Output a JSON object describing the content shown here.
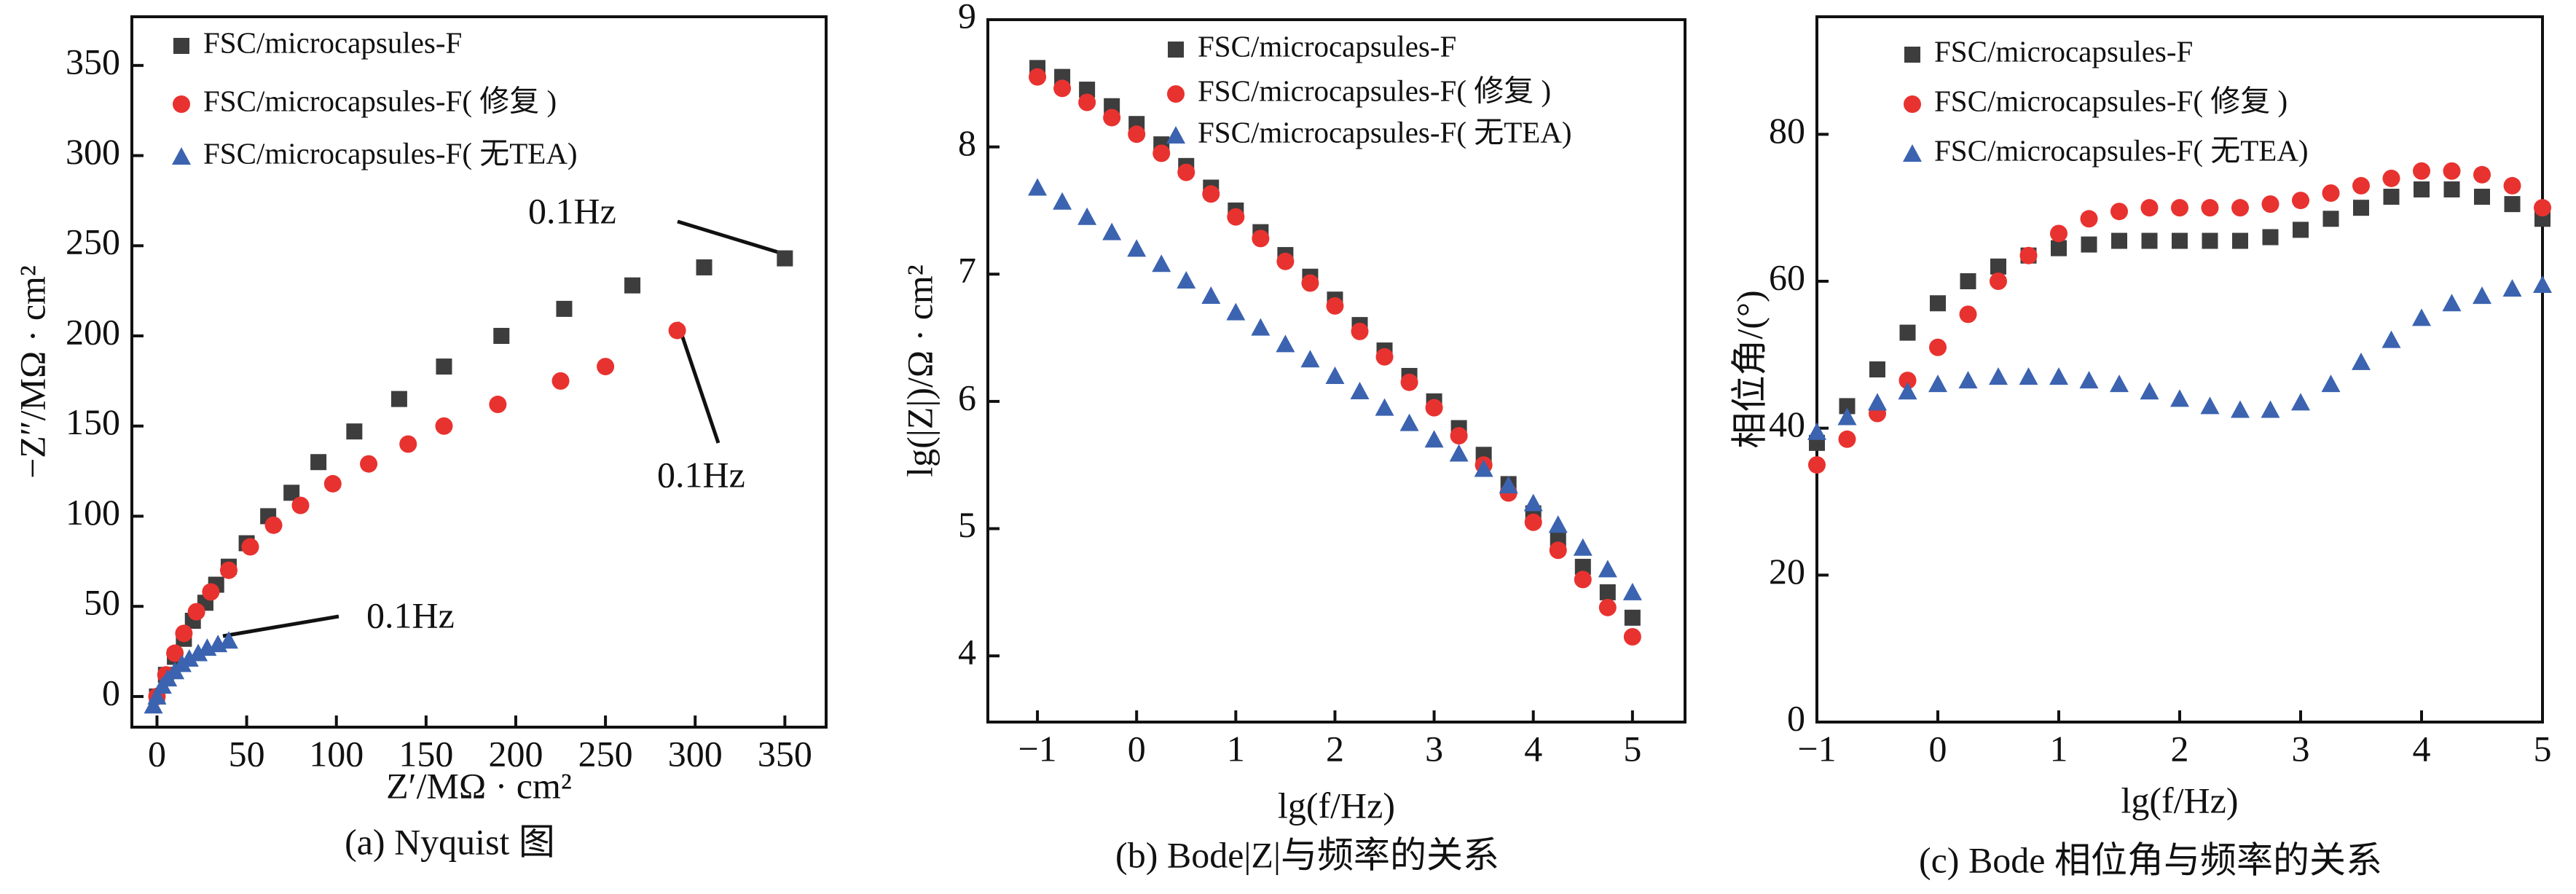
{
  "chart_data": [
    {
      "type": "scatter",
      "caption": "(a) Nyquist 图",
      "xlabel": "Z′/MΩ · cm²",
      "ylabel": "−Z″/MΩ · cm²",
      "xlim": [
        -14,
        373
      ],
      "ylim": [
        -17,
        377
      ],
      "xticks": [
        0,
        50,
        100,
        150,
        200,
        250,
        300,
        350
      ],
      "yticks": [
        0,
        50,
        100,
        150,
        200,
        250,
        300,
        350
      ],
      "annotations": [
        "0.1Hz",
        "0.1Hz",
        "0.1Hz"
      ],
      "series": [
        {
          "name": "FSC/microcapsules-F",
          "color": "#3d3d3d",
          "marker": "square",
          "x": [
            0,
            5,
            10,
            15,
            20,
            27,
            33,
            40,
            50,
            62,
            75,
            90,
            110,
            135,
            160,
            192,
            227,
            265,
            305,
            350
          ],
          "values": [
            0,
            12,
            22,
            32,
            42,
            52,
            62,
            72,
            85,
            100,
            113,
            130,
            147,
            165,
            183,
            200,
            215,
            228,
            238,
            243
          ]
        },
        {
          "name": "FSC/microcapsules-F( 修复 )",
          "color": "#e8322f",
          "marker": "circle",
          "x": [
            0,
            5,
            10,
            15,
            22,
            30,
            40,
            52,
            65,
            80,
            98,
            118,
            140,
            160,
            190,
            225,
            250,
            290
          ],
          "values": [
            0,
            12,
            24,
            35,
            47,
            58,
            70,
            83,
            95,
            106,
            118,
            129,
            140,
            150,
            162,
            175,
            183,
            203
          ]
        },
        {
          "name": "FSC/microcapsules-F( 无TEA)",
          "color": "#3b63b0",
          "marker": "triangle",
          "x": [
            -2,
            0,
            3,
            6,
            10,
            14,
            18,
            23,
            28,
            34,
            40
          ],
          "values": [
            -5,
            0,
            6,
            10,
            14,
            18,
            21,
            24,
            27,
            29,
            31
          ]
        }
      ]
    },
    {
      "type": "scatter",
      "caption": "(b) Bode|Z|与频率的关系",
      "xlabel": "lg(f/Hz)",
      "ylabel": "lg(|Z|)/Ω · cm²",
      "xlim": [
        -1.5,
        5.53
      ],
      "ylim": [
        3.48,
        9
      ],
      "xticks": [
        {
          "value": -1,
          "label": "−1"
        },
        0,
        1,
        2,
        3,
        4,
        5
      ],
      "yticks": [
        4,
        5,
        6,
        7,
        8,
        9
      ],
      "x": [
        -1,
        -0.75,
        -0.5,
        -0.25,
        0,
        0.25,
        0.5,
        0.75,
        1,
        1.25,
        1.5,
        1.75,
        2,
        2.25,
        2.5,
        2.75,
        3,
        3.25,
        3.5,
        3.75,
        4,
        4.25,
        4.5,
        4.75,
        5
      ],
      "series": [
        {
          "name": "FSC/microcapsules-F",
          "color": "#3d3d3d",
          "marker": "square",
          "values": [
            8.62,
            8.55,
            8.45,
            8.32,
            8.18,
            8.02,
            7.85,
            7.68,
            7.5,
            7.33,
            7.15,
            6.98,
            6.8,
            6.6,
            6.4,
            6.2,
            6.0,
            5.79,
            5.58,
            5.35,
            5.12,
            4.91,
            4.7,
            4.5,
            4.3
          ]
        },
        {
          "name": "FSC/microcapsules-F( 修复 )",
          "color": "#e8322f",
          "marker": "circle",
          "values": [
            8.55,
            8.46,
            8.35,
            8.23,
            8.1,
            7.95,
            7.8,
            7.63,
            7.45,
            7.28,
            7.1,
            6.93,
            6.75,
            6.55,
            6.35,
            6.15,
            5.95,
            5.73,
            5.5,
            5.28,
            5.05,
            4.83,
            4.6,
            4.38,
            4.15
          ]
        },
        {
          "name": "FSC/microcapsules-F( 无TEA)",
          "color": "#3b63b0",
          "marker": "triangle",
          "values": [
            7.68,
            7.57,
            7.45,
            7.33,
            7.2,
            7.08,
            6.95,
            6.83,
            6.7,
            6.58,
            6.45,
            6.33,
            6.2,
            6.08,
            5.95,
            5.83,
            5.7,
            5.59,
            5.47,
            5.34,
            5.2,
            5.03,
            4.85,
            4.68,
            4.5
          ]
        }
      ]
    },
    {
      "type": "scatter",
      "caption": "(c) Bode 相位角与频率的关系",
      "xlabel": "lg(f/Hz)",
      "ylabel": "相位角/(°)",
      "xlim": [
        -1,
        5
      ],
      "ylim": [
        0,
        96
      ],
      "xticks": [
        {
          "value": -1,
          "label": "−1"
        },
        0,
        1,
        2,
        3,
        4,
        5
      ],
      "yticks": [
        0,
        20,
        40,
        60,
        80
      ],
      "x": [
        -1,
        -0.75,
        -0.5,
        -0.25,
        0,
        0.25,
        0.5,
        0.75,
        1,
        1.25,
        1.5,
        1.75,
        2,
        2.25,
        2.5,
        2.75,
        3,
        3.25,
        3.5,
        3.75,
        4,
        4.25,
        4.5,
        4.75,
        5
      ],
      "series": [
        {
          "name": "FSC/microcapsules-F",
          "color": "#3d3d3d",
          "marker": "square",
          "values": [
            38,
            43,
            48,
            53,
            57,
            60,
            62,
            63.5,
            64.5,
            65,
            65.5,
            65.5,
            65.5,
            65.5,
            65.5,
            66,
            67,
            68.5,
            70,
            71.5,
            72.5,
            72.5,
            71.5,
            70.5,
            68.5
          ]
        },
        {
          "name": "FSC/microcapsules-F( 修复 )",
          "color": "#e8322f",
          "marker": "circle",
          "values": [
            35,
            38.5,
            42,
            46.5,
            51,
            55.5,
            60,
            63.5,
            66.5,
            68.5,
            69.5,
            70,
            70,
            70,
            70,
            70.5,
            71,
            72,
            73,
            74,
            75,
            75,
            74.5,
            73,
            70
          ]
        },
        {
          "name": "FSC/microcapsules-F( 无TEA)",
          "color": "#3b63b0",
          "marker": "triangle",
          "values": [
            39.5,
            41.5,
            43.5,
            45,
            46,
            46.5,
            47,
            47,
            47,
            46.5,
            46,
            45,
            44,
            43,
            42.5,
            42.5,
            43.5,
            46,
            49,
            52,
            55,
            57,
            58,
            59,
            59.5
          ]
        }
      ]
    }
  ]
}
